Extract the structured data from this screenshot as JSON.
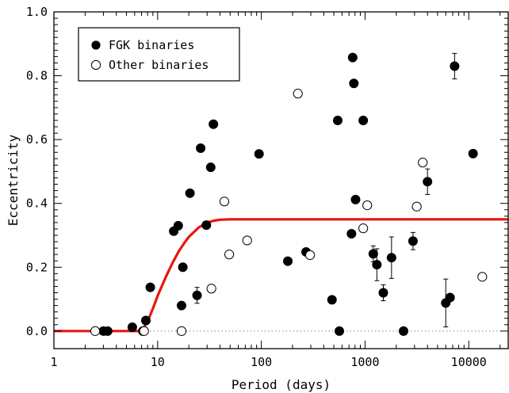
{
  "chart_data": {
    "type": "scatter",
    "xlabel": "Period (days)",
    "ylabel": "Eccentricity",
    "xscale": "log",
    "xlim": [
      1,
      24000
    ],
    "ylim": [
      -0.055,
      1.0
    ],
    "x_ticks": [
      1,
      10,
      100,
      1000,
      10000
    ],
    "x_tick_labels": [
      "1",
      "10",
      "100",
      "1000",
      "10000"
    ],
    "y_ticks": [
      0.0,
      0.2,
      0.4,
      0.6,
      0.8,
      1.0
    ],
    "y_tick_labels": [
      "0.0",
      "0.2",
      "0.4",
      "0.6",
      "0.8",
      "1.0"
    ],
    "legend": {
      "position": "top-left",
      "entries": [
        {
          "label": "FGK binaries",
          "marker": "filled-circle"
        },
        {
          "label": "Other binaries",
          "marker": "open-circle"
        }
      ]
    },
    "colors": {
      "fit_curve": "#e8160f",
      "markers": "#000000",
      "zero_line": "#888888"
    },
    "zero_line": {
      "y": 0,
      "style": "dotted"
    },
    "fit_curve": {
      "points": [
        [
          1,
          0
        ],
        [
          7.0,
          0
        ],
        [
          8,
          0.03
        ],
        [
          9,
          0.07
        ],
        [
          10,
          0.11
        ],
        [
          12,
          0.17
        ],
        [
          14,
          0.215
        ],
        [
          16,
          0.25
        ],
        [
          18,
          0.275
        ],
        [
          20,
          0.295
        ],
        [
          25,
          0.325
        ],
        [
          30,
          0.34
        ],
        [
          35,
          0.346
        ],
        [
          40,
          0.349
        ],
        [
          50,
          0.35
        ],
        [
          24000,
          0.35
        ]
      ]
    },
    "series": [
      {
        "name": "FGK binaries",
        "points": [
          {
            "x": 3.0,
            "y": 0.0
          },
          {
            "x": 3.3,
            "y": 0.0
          },
          {
            "x": 5.7,
            "y": 0.012
          },
          {
            "x": 7.2,
            "y": 0.0
          },
          {
            "x": 7.7,
            "y": 0.033
          },
          {
            "x": 8.5,
            "y": 0.137
          },
          {
            "x": 14.3,
            "y": 0.313
          },
          {
            "x": 15.8,
            "y": 0.33
          },
          {
            "x": 17.0,
            "y": 0.08
          },
          {
            "x": 17.5,
            "y": 0.2
          },
          {
            "x": 20.5,
            "y": 0.432
          },
          {
            "x": 24.0,
            "y": 0.112,
            "err": 0.025
          },
          {
            "x": 26.0,
            "y": 0.573
          },
          {
            "x": 29.5,
            "y": 0.332
          },
          {
            "x": 32.5,
            "y": 0.513
          },
          {
            "x": 34.5,
            "y": 0.648
          },
          {
            "x": 95.0,
            "y": 0.555
          },
          {
            "x": 180.0,
            "y": 0.219
          },
          {
            "x": 270.0,
            "y": 0.248
          },
          {
            "x": 480.0,
            "y": 0.098
          },
          {
            "x": 545.0,
            "y": 0.66
          },
          {
            "x": 565.0,
            "y": 0.0
          },
          {
            "x": 740.0,
            "y": 0.305
          },
          {
            "x": 760.0,
            "y": 0.857
          },
          {
            "x": 780.0,
            "y": 0.776
          },
          {
            "x": 810.0,
            "y": 0.412
          },
          {
            "x": 960.0,
            "y": 0.66
          },
          {
            "x": 1200.0,
            "y": 0.242,
            "err": 0.025
          },
          {
            "x": 1300.0,
            "y": 0.208,
            "err": 0.05
          },
          {
            "x": 1500.0,
            "y": 0.12,
            "err": 0.025
          },
          {
            "x": 1800.0,
            "y": 0.23,
            "err": 0.065
          },
          {
            "x": 2350.0,
            "y": 0.0
          },
          {
            "x": 2900.0,
            "y": 0.282,
            "err": 0.027
          },
          {
            "x": 4000.0,
            "y": 0.468,
            "err": 0.04
          },
          {
            "x": 6000.0,
            "y": 0.088,
            "err": 0.075
          },
          {
            "x": 6600.0,
            "y": 0.105
          },
          {
            "x": 7300.0,
            "y": 0.83,
            "err": 0.04
          },
          {
            "x": 11000.0,
            "y": 0.556
          }
        ]
      },
      {
        "name": "Other binaries",
        "points": [
          {
            "x": 2.5,
            "y": 0.0
          },
          {
            "x": 7.4,
            "y": 0.0
          },
          {
            "x": 17.0,
            "y": 0.0
          },
          {
            "x": 33.0,
            "y": 0.133
          },
          {
            "x": 44.0,
            "y": 0.406
          },
          {
            "x": 49.0,
            "y": 0.24
          },
          {
            "x": 73.0,
            "y": 0.284
          },
          {
            "x": 225.0,
            "y": 0.744
          },
          {
            "x": 295.0,
            "y": 0.238
          },
          {
            "x": 960.0,
            "y": 0.322
          },
          {
            "x": 1050.0,
            "y": 0.394
          },
          {
            "x": 3150.0,
            "y": 0.39
          },
          {
            "x": 3600.0,
            "y": 0.528
          },
          {
            "x": 13500.0,
            "y": 0.17
          }
        ]
      }
    ]
  }
}
